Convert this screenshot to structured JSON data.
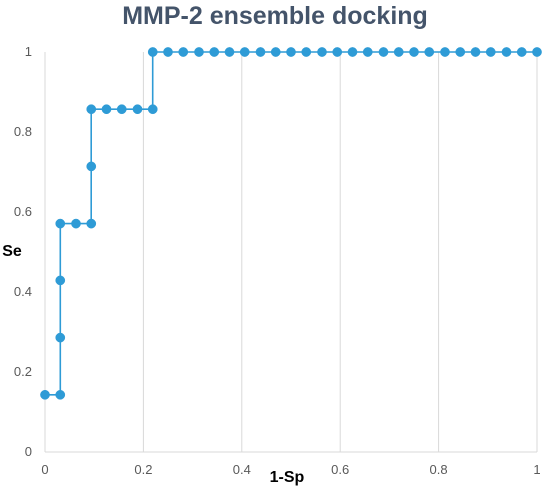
{
  "chart_data": {
    "type": "line",
    "title": "MMP-2 ensemble docking",
    "xlabel": "1-Sp",
    "ylabel": "Se",
    "xlim": [
      0,
      1
    ],
    "ylim": [
      0,
      1
    ],
    "x_ticks": [
      "0",
      "0.2",
      "0.4",
      "0.6",
      "0.8",
      "1"
    ],
    "y_ticks": [
      "0",
      "0.2",
      "0.4",
      "0.6",
      "0.8",
      "1"
    ],
    "grid": "vertical",
    "legend": "none",
    "series": [
      {
        "color": "#2e9bd6",
        "marker": "circle",
        "points": [
          [
            0.0,
            0.143
          ],
          [
            0.031,
            0.143
          ],
          [
            0.031,
            0.286
          ],
          [
            0.031,
            0.429
          ],
          [
            0.031,
            0.571
          ],
          [
            0.063,
            0.571
          ],
          [
            0.094,
            0.571
          ],
          [
            0.094,
            0.714
          ],
          [
            0.094,
            0.857
          ],
          [
            0.125,
            0.857
          ],
          [
            0.156,
            0.857
          ],
          [
            0.188,
            0.857
          ],
          [
            0.219,
            0.857
          ],
          [
            0.219,
            1.0
          ],
          [
            0.25,
            1.0
          ],
          [
            0.281,
            1.0
          ],
          [
            0.313,
            1.0
          ],
          [
            0.344,
            1.0
          ],
          [
            0.375,
            1.0
          ],
          [
            0.406,
            1.0
          ],
          [
            0.438,
            1.0
          ],
          [
            0.469,
            1.0
          ],
          [
            0.5,
            1.0
          ],
          [
            0.531,
            1.0
          ],
          [
            0.563,
            1.0
          ],
          [
            0.594,
            1.0
          ],
          [
            0.625,
            1.0
          ],
          [
            0.656,
            1.0
          ],
          [
            0.688,
            1.0
          ],
          [
            0.719,
            1.0
          ],
          [
            0.75,
            1.0
          ],
          [
            0.781,
            1.0
          ],
          [
            0.813,
            1.0
          ],
          [
            0.844,
            1.0
          ],
          [
            0.875,
            1.0
          ],
          [
            0.906,
            1.0
          ],
          [
            0.938,
            1.0
          ],
          [
            0.969,
            1.0
          ],
          [
            1.0,
            1.0
          ]
        ]
      }
    ]
  }
}
